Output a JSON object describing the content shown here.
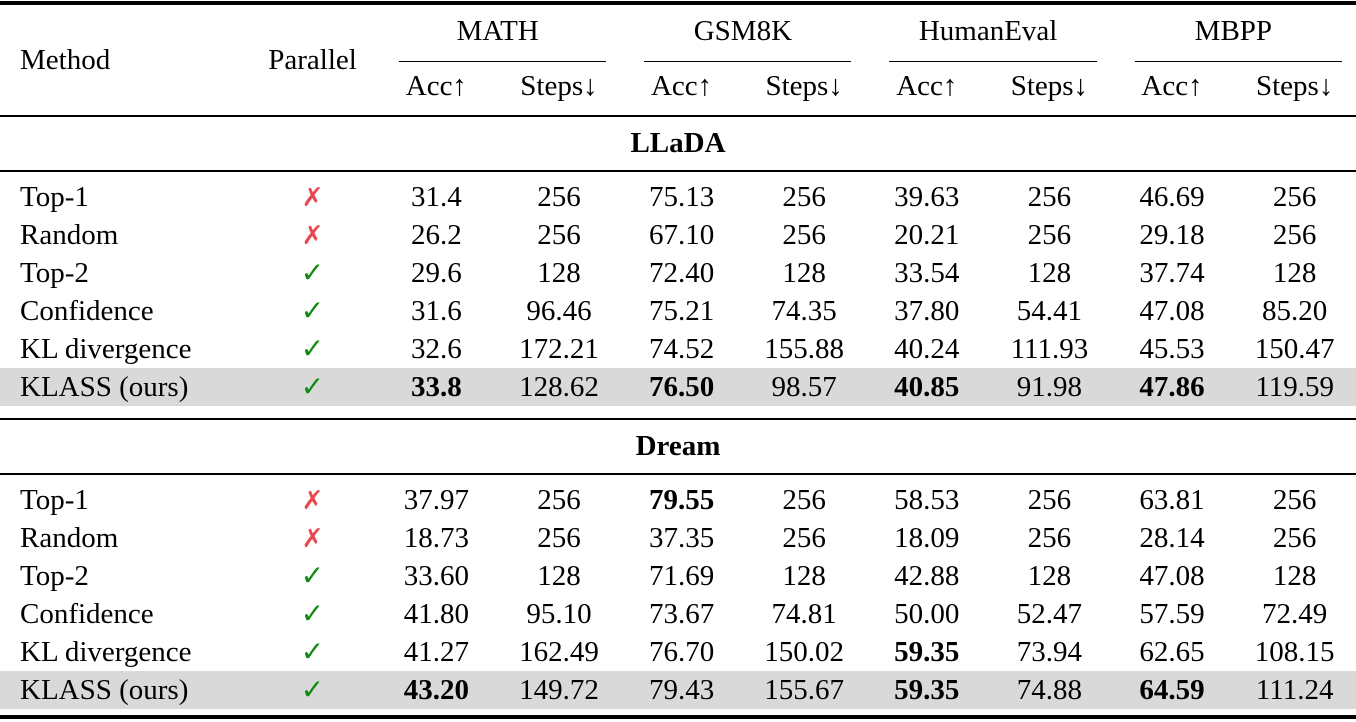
{
  "header": {
    "method": "Method",
    "parallel": "Parallel",
    "groups": [
      "MATH",
      "GSM8K",
      "HumanEval",
      "MBPP"
    ],
    "acc": "Acc↑",
    "steps": "Steps↓"
  },
  "colors": {
    "cross": "#e8484f",
    "check": "#118a11",
    "highlight": "#d9d9d9"
  },
  "icons": {
    "parallel_true": "✓",
    "parallel_false": "✗"
  },
  "sections": [
    {
      "name": "LLaDA",
      "rows": [
        {
          "method": "Top-1",
          "parallel": false,
          "values": [
            "31.4",
            "256",
            "75.13",
            "256",
            "39.63",
            "256",
            "46.69",
            "256"
          ],
          "bold": []
        },
        {
          "method": "Random",
          "parallel": false,
          "values": [
            "26.2",
            "256",
            "67.10",
            "256",
            "20.21",
            "256",
            "29.18",
            "256"
          ],
          "bold": []
        },
        {
          "method": "Top-2",
          "parallel": true,
          "values": [
            "29.6",
            "128",
            "72.40",
            "128",
            "33.54",
            "128",
            "37.74",
            "128"
          ],
          "bold": []
        },
        {
          "method": "Confidence",
          "parallel": true,
          "values": [
            "31.6",
            "96.46",
            "75.21",
            "74.35",
            "37.80",
            "54.41",
            "47.08",
            "85.20"
          ],
          "bold": []
        },
        {
          "method": "KL divergence",
          "parallel": true,
          "values": [
            "32.6",
            "172.21",
            "74.52",
            "155.88",
            "40.24",
            "111.93",
            "45.53",
            "150.47"
          ],
          "bold": []
        },
        {
          "method": "KLASS (ours)",
          "parallel": true,
          "values": [
            "33.8",
            "128.62",
            "76.50",
            "98.57",
            "40.85",
            "91.98",
            "47.86",
            "119.59"
          ],
          "bold": [
            0,
            2,
            4,
            6
          ],
          "highlight": true
        }
      ]
    },
    {
      "name": "Dream",
      "rows": [
        {
          "method": "Top-1",
          "parallel": false,
          "values": [
            "37.97",
            "256",
            "79.55",
            "256",
            "58.53",
            "256",
            "63.81",
            "256"
          ],
          "bold": [
            2
          ]
        },
        {
          "method": "Random",
          "parallel": false,
          "values": [
            "18.73",
            "256",
            "37.35",
            "256",
            "18.09",
            "256",
            "28.14",
            "256"
          ],
          "bold": []
        },
        {
          "method": "Top-2",
          "parallel": true,
          "values": [
            "33.60",
            "128",
            "71.69",
            "128",
            "42.88",
            "128",
            "47.08",
            "128"
          ],
          "bold": []
        },
        {
          "method": "Confidence",
          "parallel": true,
          "values": [
            "41.80",
            "95.10",
            "73.67",
            "74.81",
            "50.00",
            "52.47",
            "57.59",
            "72.49"
          ],
          "bold": []
        },
        {
          "method": "KL divergence",
          "parallel": true,
          "values": [
            "41.27",
            "162.49",
            "76.70",
            "150.02",
            "59.35",
            "73.94",
            "62.65",
            "108.15"
          ],
          "bold": [
            4
          ]
        },
        {
          "method": "KLASS (ours)",
          "parallel": true,
          "values": [
            "43.20",
            "149.72",
            "79.43",
            "155.67",
            "59.35",
            "74.88",
            "64.59",
            "111.24"
          ],
          "bold": [
            0,
            4,
            6
          ],
          "highlight": true
        }
      ]
    }
  ]
}
